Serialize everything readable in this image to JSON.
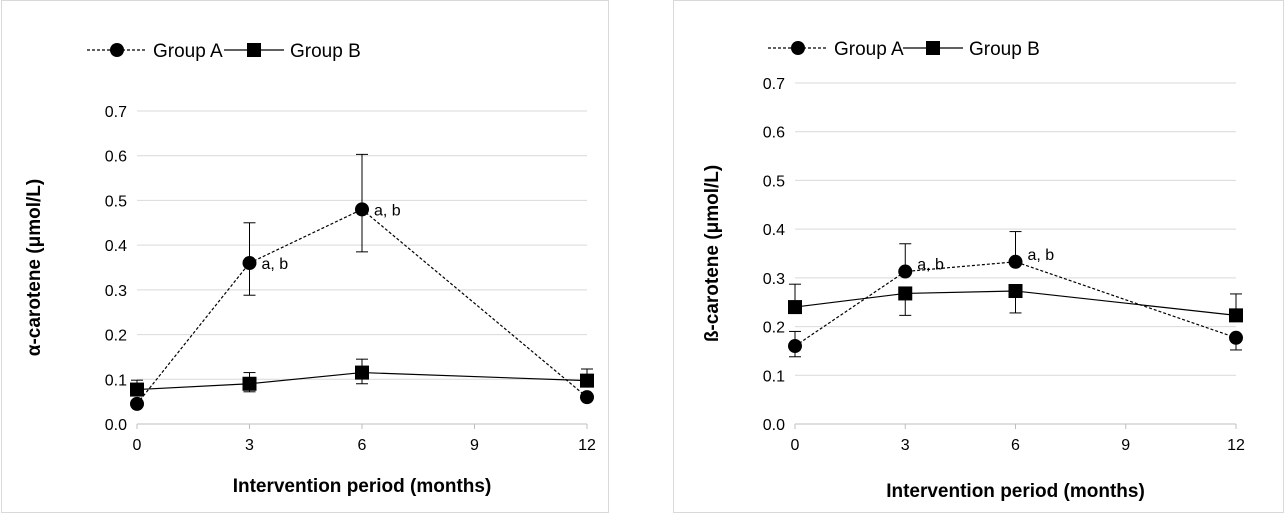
{
  "chart_data": [
    {
      "type": "line",
      "title": "",
      "xlabel": "Intervention period (months)",
      "ylabel": "α-carotene (μmol/L)",
      "ylim": [
        0,
        0.7
      ],
      "xlim": [
        0,
        12
      ],
      "yticks": [
        "0.0",
        "0.1",
        "0.2",
        "0.3",
        "0.4",
        "0.5",
        "0.6",
        "0.7"
      ],
      "xticks": [
        "0",
        "3",
        "6",
        "9",
        "12"
      ],
      "grid": "horizontal",
      "legend_position": "top",
      "series": [
        {
          "name": "Group A",
          "marker": "circle",
          "line": "dashed",
          "x": [
            0,
            3,
            6,
            12
          ],
          "y": [
            0.045,
            0.36,
            0.48,
            0.06
          ],
          "err_upper": [
            null,
            0.45,
            0.603,
            null
          ],
          "err_lower": [
            null,
            0.288,
            0.385,
            null
          ],
          "annotations": [
            "",
            "a, b",
            "a, b",
            ""
          ]
        },
        {
          "name": "Group B",
          "marker": "square",
          "line": "solid",
          "x": [
            0,
            3,
            6,
            12
          ],
          "y": [
            0.077,
            0.09,
            0.115,
            0.097
          ],
          "err_upper": [
            0.098,
            0.115,
            0.145,
            0.123
          ],
          "err_lower": [
            null,
            0.072,
            0.09,
            null
          ],
          "annotations": [
            "",
            "",
            "",
            ""
          ]
        }
      ]
    },
    {
      "type": "line",
      "title": "",
      "xlabel": "Intervention period (months)",
      "ylabel": "ß-carotene (μmol/L)",
      "ylim": [
        0,
        0.7
      ],
      "xlim": [
        0,
        12
      ],
      "yticks": [
        "0.0",
        "0.1",
        "0.2",
        "0.3",
        "0.4",
        "0.5",
        "0.6",
        "0.7"
      ],
      "xticks": [
        "0",
        "3",
        "6",
        "9",
        "12"
      ],
      "grid": "horizontal",
      "legend_position": "top",
      "series": [
        {
          "name": "Group A",
          "marker": "circle",
          "line": "dashed",
          "x": [
            0,
            3,
            6,
            12
          ],
          "y": [
            0.16,
            0.313,
            0.333,
            0.177
          ],
          "err_upper": [
            0.19,
            0.37,
            0.395,
            null
          ],
          "err_lower": [
            0.138,
            null,
            null,
            0.152
          ],
          "annotations": [
            "",
            "a, b",
            "a, b",
            ""
          ]
        },
        {
          "name": "Group B",
          "marker": "square",
          "line": "solid",
          "x": [
            0,
            3,
            6,
            12
          ],
          "y": [
            0.24,
            0.268,
            0.273,
            0.223
          ],
          "err_upper": [
            0.287,
            null,
            null,
            0.267
          ],
          "err_lower": [
            null,
            0.223,
            0.228,
            null
          ],
          "annotations": [
            "",
            "",
            "",
            ""
          ]
        }
      ]
    }
  ]
}
